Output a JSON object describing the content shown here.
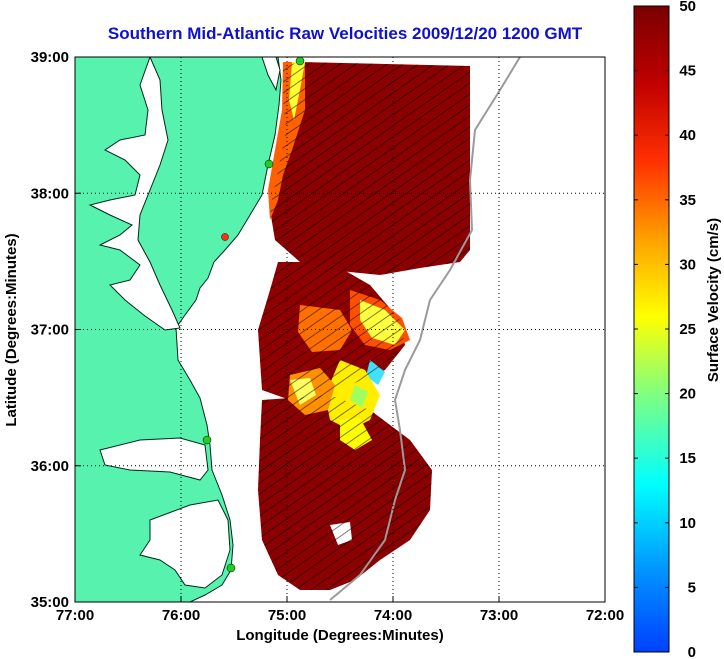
{
  "title": "Southern Mid-Atlantic Raw Velocities 2009/12/20 1200 GMT",
  "x_axis": {
    "label": "Longitude (Degrees:Minutes)",
    "ticks": [
      "77:00",
      "76:00",
      "75:00",
      "74:00",
      "73:00",
      "72:00"
    ]
  },
  "y_axis": {
    "label": "Latitude (Degrees:Minutes)",
    "ticks": [
      "39:00",
      "38:00",
      "37:00",
      "36:00",
      "35:00"
    ]
  },
  "colorbar": {
    "label": "Surface Velocity (cm/s)",
    "ticks": [
      "50",
      "45",
      "40",
      "35",
      "30",
      "25",
      "20",
      "15",
      "10",
      "5",
      "0"
    ],
    "colormap": [
      "#7f0000",
      "#ff0000",
      "#ff8000",
      "#ffff00",
      "#80ff80",
      "#00ffff",
      "#0080ff",
      "#0000ff"
    ]
  },
  "colors": {
    "land": "#56f2ae",
    "ocean": "#ffffff",
    "title": "#1010d0",
    "velocity_field": "#8b0000",
    "station_marker": "#22cc22"
  },
  "map_extent": {
    "lon_min": -77,
    "lon_max": -72,
    "lat_min": 35,
    "lat_max": 39
  }
}
